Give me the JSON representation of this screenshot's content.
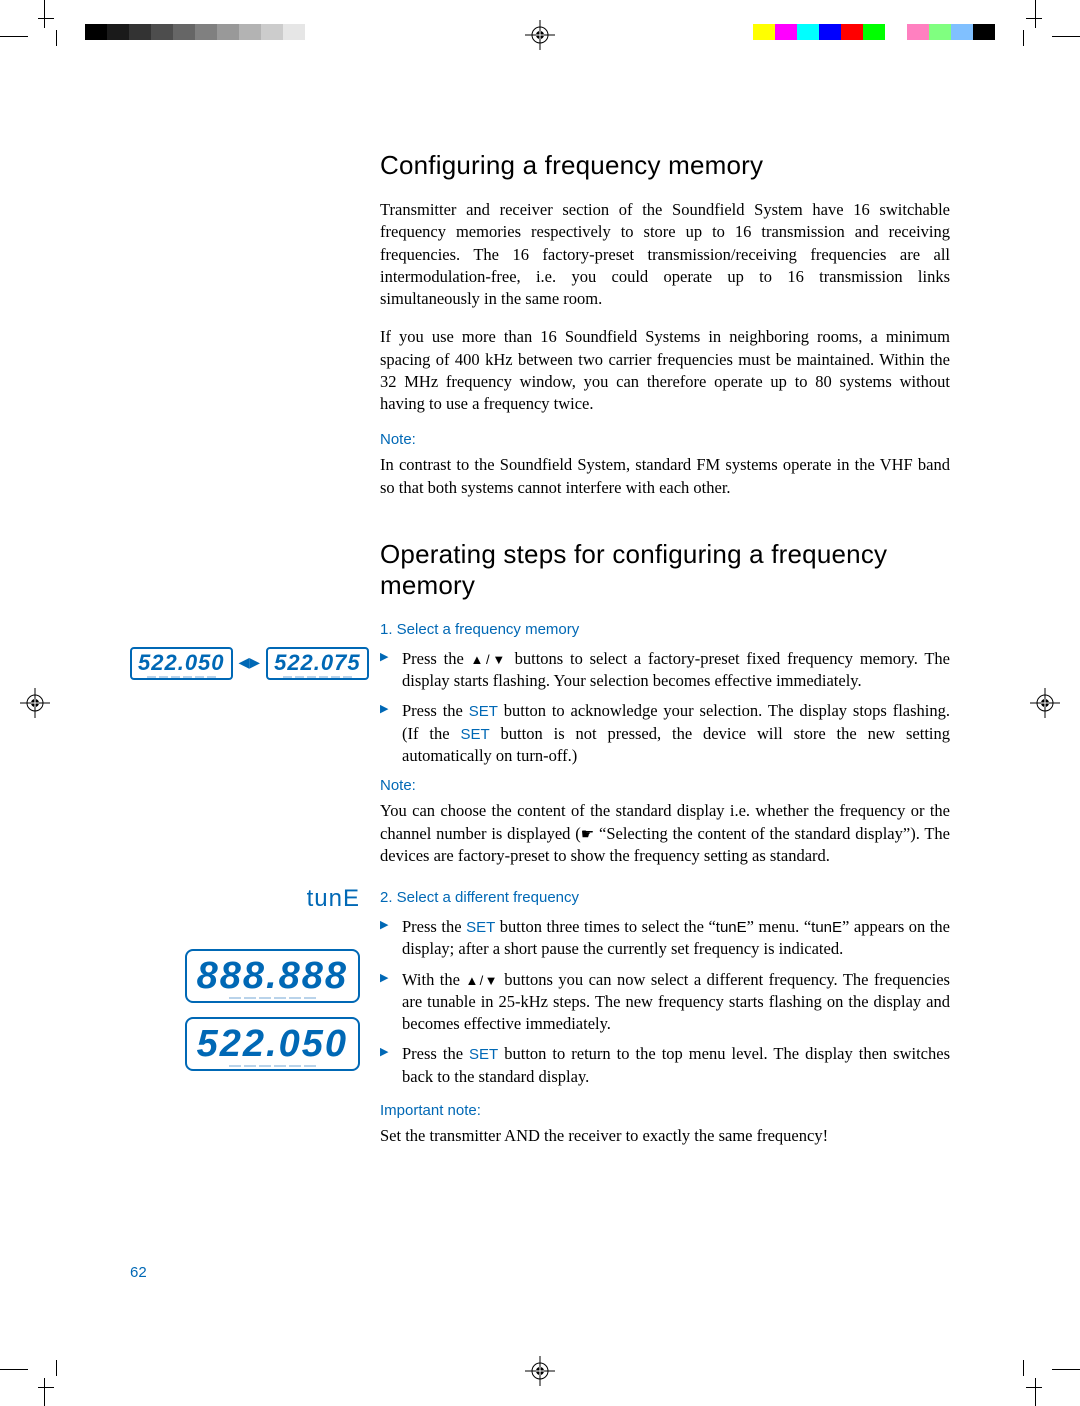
{
  "colors": {
    "accent": "#0068b5",
    "text": "#000000",
    "background": "#ffffff",
    "underscore": "#b9d3ea"
  },
  "grayscale": [
    "#000000",
    "#1a1a1a",
    "#333333",
    "#4d4d4d",
    "#666666",
    "#808080",
    "#999999",
    "#b3b3b3",
    "#cccccc",
    "#e6e6e6",
    "#ffffff"
  ],
  "colorbar": [
    "#ffff00",
    "#ff00ff",
    "#00ffff",
    "#0000ff",
    "#ff0000",
    "#00ff00",
    "#ffffff",
    "#ff80c0",
    "#80ff80",
    "#80c0ff",
    "#000000"
  ],
  "page_number": "62",
  "h1": "Configuring a frequency memory",
  "p1": "Transmitter and receiver section of the Soundfield System have 16 switchable frequency memories respectively to store up to 16 transmission and receiving frequencies. The 16 factory-preset transmission/receiving frequencies are all intermodulation-free, i.e. you could operate up to 16 transmission links simultaneously in the same room.",
  "p2": "If you use more than 16 Soundfield Systems in neighboring rooms,  a minimum spacing of 400 kHz between two carrier frequencies must be maintained. Within the 32 MHz frequency window, you can therefore operate up to 80 systems without having to use a frequency twice.",
  "note_label": "Note:",
  "p3": "In contrast to the Soundfield System, standard FM systems operate in the VHF band so that both systems cannot interfere with each other.",
  "h2": "Operating steps for configuring a frequency memory",
  "step1": {
    "heading": "1. Select a frequency memory",
    "freq_left": "522.050",
    "freq_right": "522.075",
    "b1_a": "Press the ",
    "b1_b": " buttons to select a factory-preset fixed frequency memory. The display starts flashing. Your selection becomes effective immediately.",
    "b2_a": "Press the ",
    "b2_b": " button to acknowledge your selection. The display stops flashing. (If the ",
    "b2_c": " button is not pressed, the device will store the new setting automatically on turn-off.)",
    "note_p_a": "You can choose the content of the standard display i.e. whether the frequency or the channel number is displayed (",
    "note_p_b": " “Selecting the content of the standard display”). The devices are factory-preset to show the frequency setting as standard."
  },
  "step2": {
    "heading": "2. Select a different frequency",
    "tune_label": "tunE",
    "display_blank": "888.888",
    "display_freq": "522.050",
    "b1_a": "Press the ",
    "b1_b": " button three times to select the “",
    "b1_c": "” menu. “",
    "b1_d": "” appears on the display; after a short pause the currently set frequency is indicated.",
    "b2_a": "With the ",
    "b2_b": " buttons you can now select a different frequency. The frequencies are tunable in 25-kHz steps. The new frequency starts flashing on the display and becomes effective immediately.",
    "b3_a": "Press the ",
    "b3_b": " button to return to the top menu level. The display then switches back to the standard display.",
    "important_label": "Important note:",
    "important_text": "Set the transmitter AND the receiver to exactly the same frequency!"
  },
  "labels": {
    "set": "SET",
    "updown": "▲/▼",
    "tune_inline": "tunE",
    "pointer": "☛"
  }
}
